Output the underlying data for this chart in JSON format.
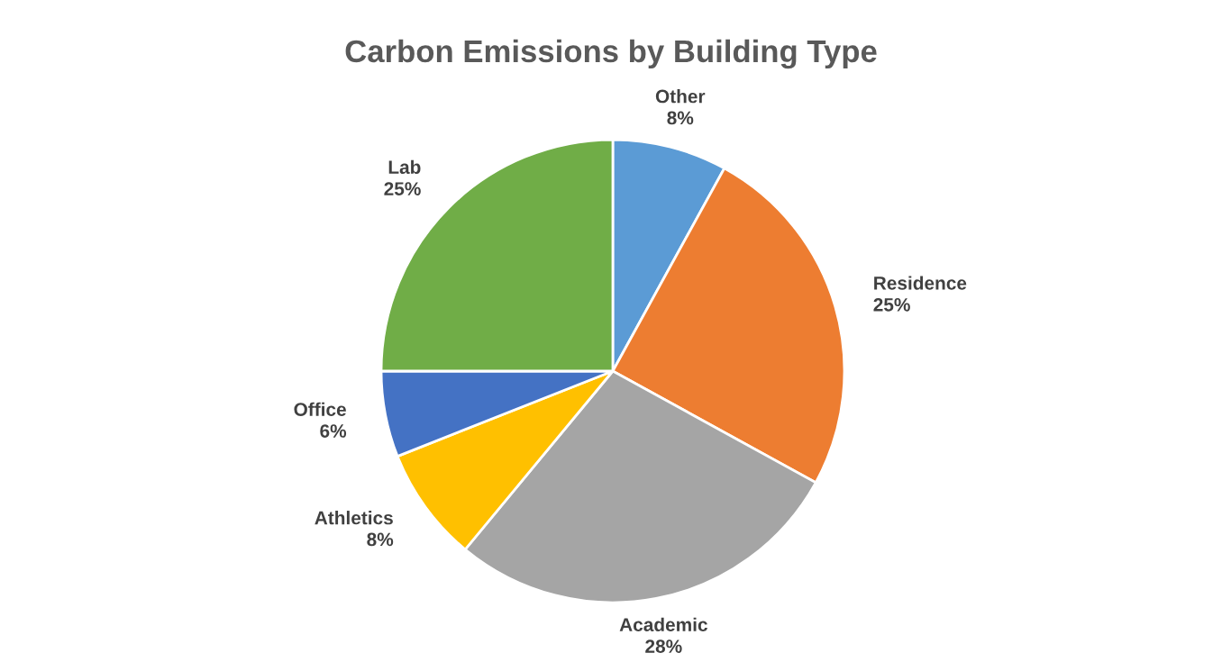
{
  "chart_data": {
    "type": "pie",
    "title": "Carbon Emissions by Building Type",
    "categories": [
      "Other",
      "Residence",
      "Academic",
      "Athletics",
      "Office",
      "Lab"
    ],
    "values": [
      8,
      25,
      28,
      8,
      6,
      25
    ],
    "value_labels": [
      "8%",
      "25%",
      "28%",
      "8%",
      "6%",
      "25%"
    ],
    "colors": [
      "#5b9bd5",
      "#ed7d31",
      "#a5a5a5",
      "#ffc000",
      "#4472c4",
      "#70ad47"
    ],
    "legend": false
  }
}
